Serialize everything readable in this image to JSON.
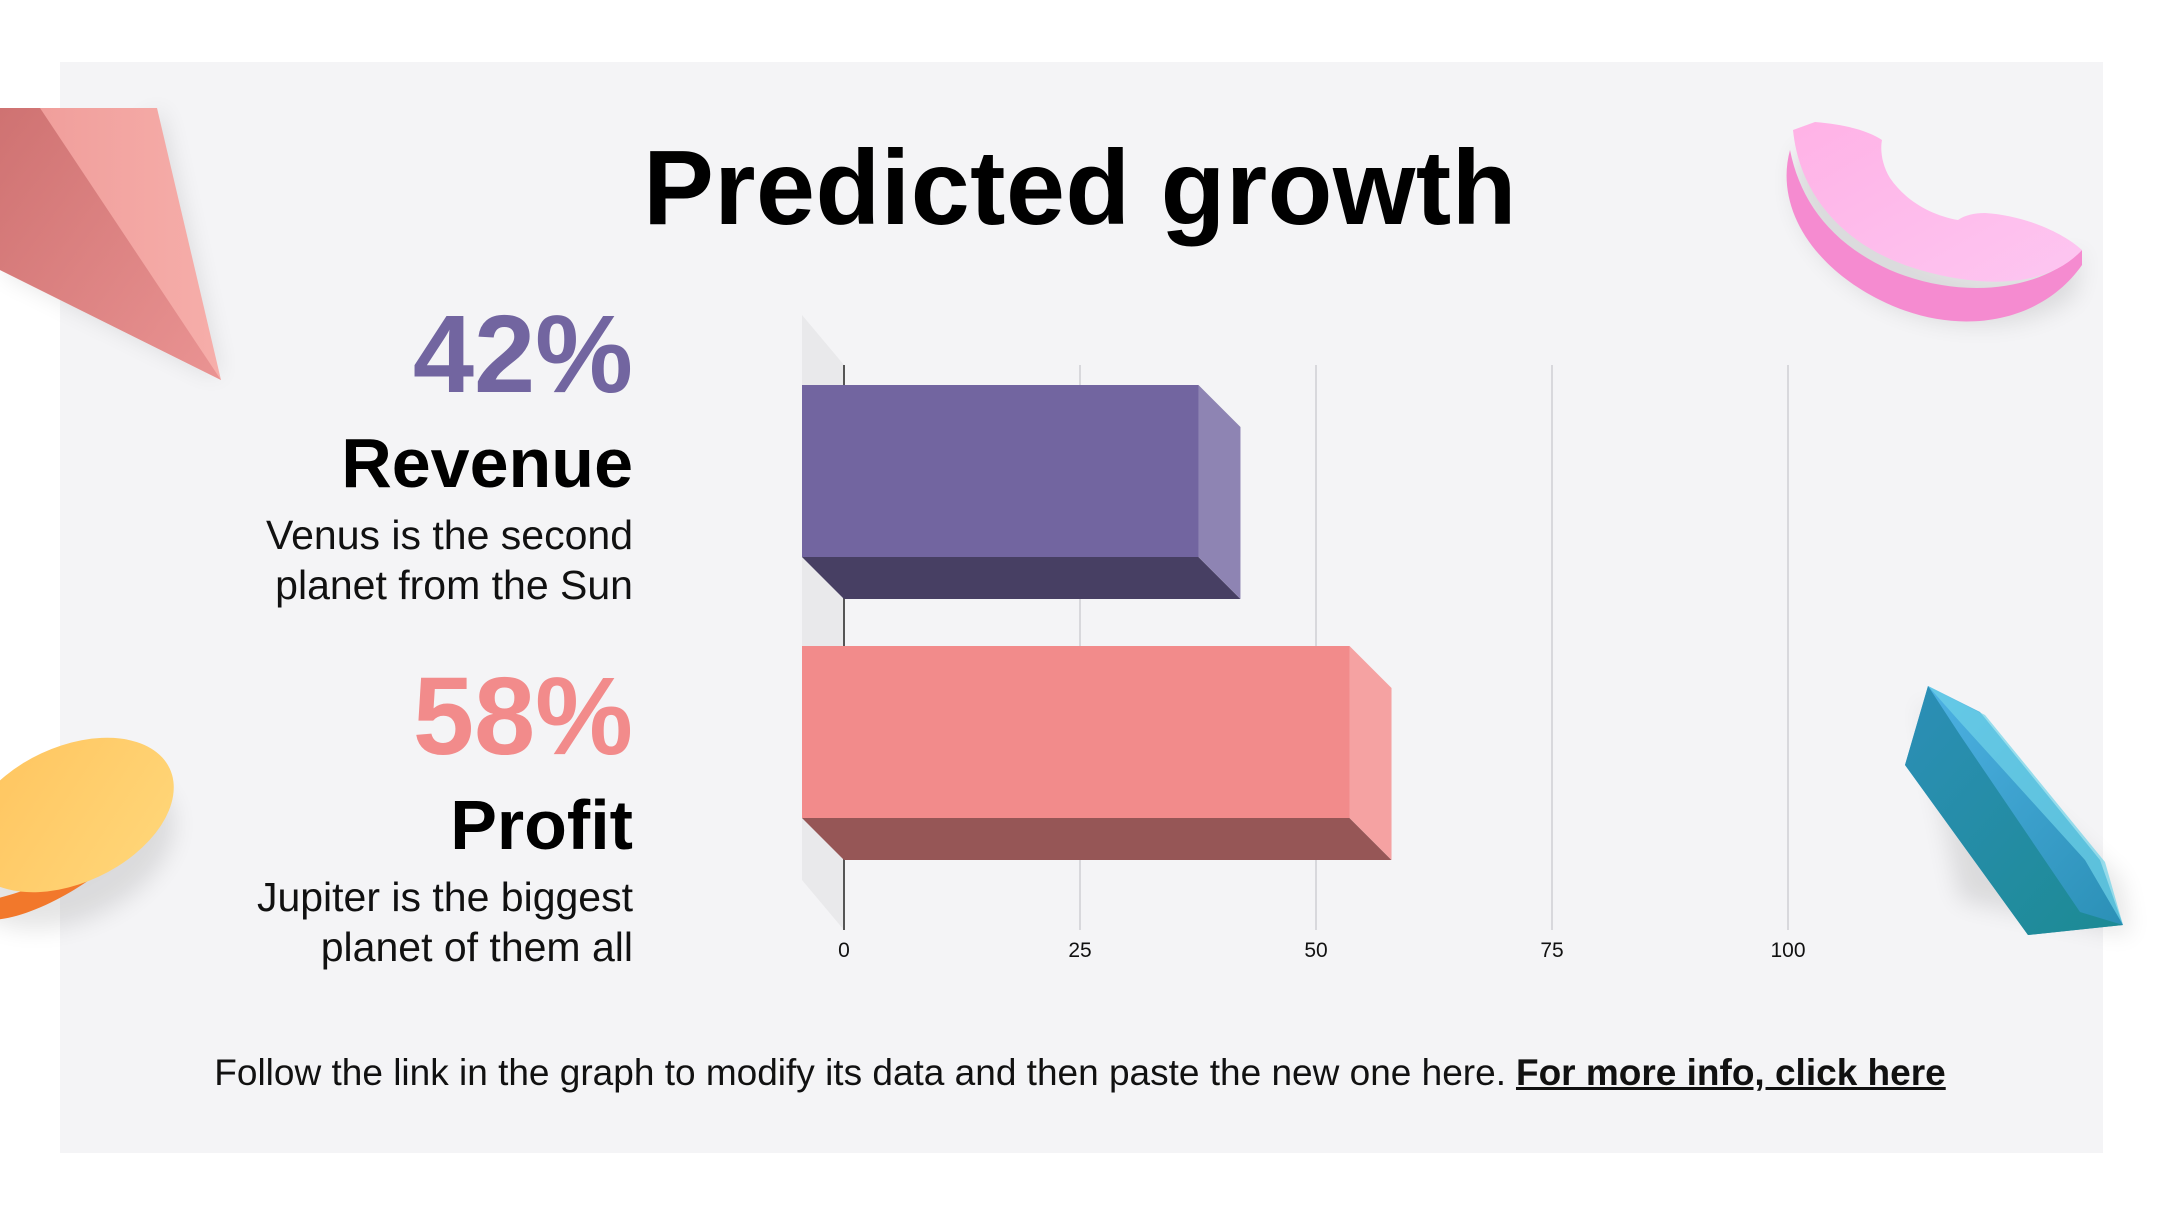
{
  "slide": {
    "title": "Predicted growth",
    "metrics": [
      {
        "pct": "42%",
        "label": "Revenue",
        "desc": "Venus is the second\nplanet from the Sun",
        "color": "#7265a0"
      },
      {
        "pct": "58%",
        "label": "Profit",
        "desc": "Jupiter is the biggest\nplanet of them all",
        "color": "#f28b8b"
      }
    ],
    "footer": {
      "text": "Follow the link in the graph to modify its data and then paste the new one here.",
      "link": "For more info, click here"
    }
  },
  "chart_data": {
    "type": "bar",
    "orientation": "horizontal",
    "style": "3d",
    "categories": [
      "Revenue",
      "Profit"
    ],
    "values": [
      42,
      58
    ],
    "colors": [
      "#7265a0",
      "#f28b8b"
    ],
    "xlim": [
      0,
      100
    ],
    "xticks": [
      0,
      25,
      50,
      75,
      100
    ],
    "grid": true,
    "title": "",
    "xlabel": "",
    "ylabel": ""
  }
}
